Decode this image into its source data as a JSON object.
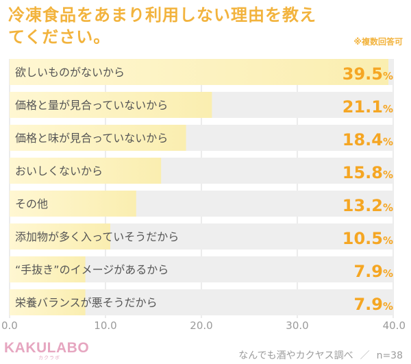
{
  "title": "冷凍食品をあまり利用しない理由を教えてください。",
  "note": "※複数回答可",
  "logo": {
    "text": "KAKULABO",
    "sub": "カクラボ"
  },
  "footer": {
    "source": "なんでも酒やカクヤス調べ",
    "sample": "n=38"
  },
  "colors": {
    "accent": "#f2b33d",
    "value": "#f5a623",
    "bar": "#faeeb0",
    "row": "#eeeeee"
  },
  "chart_data": {
    "type": "bar",
    "orientation": "horizontal",
    "categories": [
      "欲しいものがないから",
      "価格と量が見合っていないから",
      "価格と味が見合っていないから",
      "おいしくないから",
      "その他",
      "添加物が多く入っていそうだから",
      "“手抜き”のイメージがあるから",
      "栄養バランスが悪そうだから"
    ],
    "values": [
      39.5,
      21.1,
      18.4,
      15.8,
      13.2,
      10.5,
      7.9,
      7.9
    ],
    "value_labels": [
      "39.5",
      "21.1",
      "18.4",
      "15.8",
      "13.2",
      "10.5",
      "7.9",
      "7.9"
    ],
    "unit": "%",
    "xlim": [
      0,
      40
    ],
    "xticks": [
      "0.0",
      "10.0",
      "20.0",
      "30.0",
      "40.0"
    ],
    "grid": true
  }
}
